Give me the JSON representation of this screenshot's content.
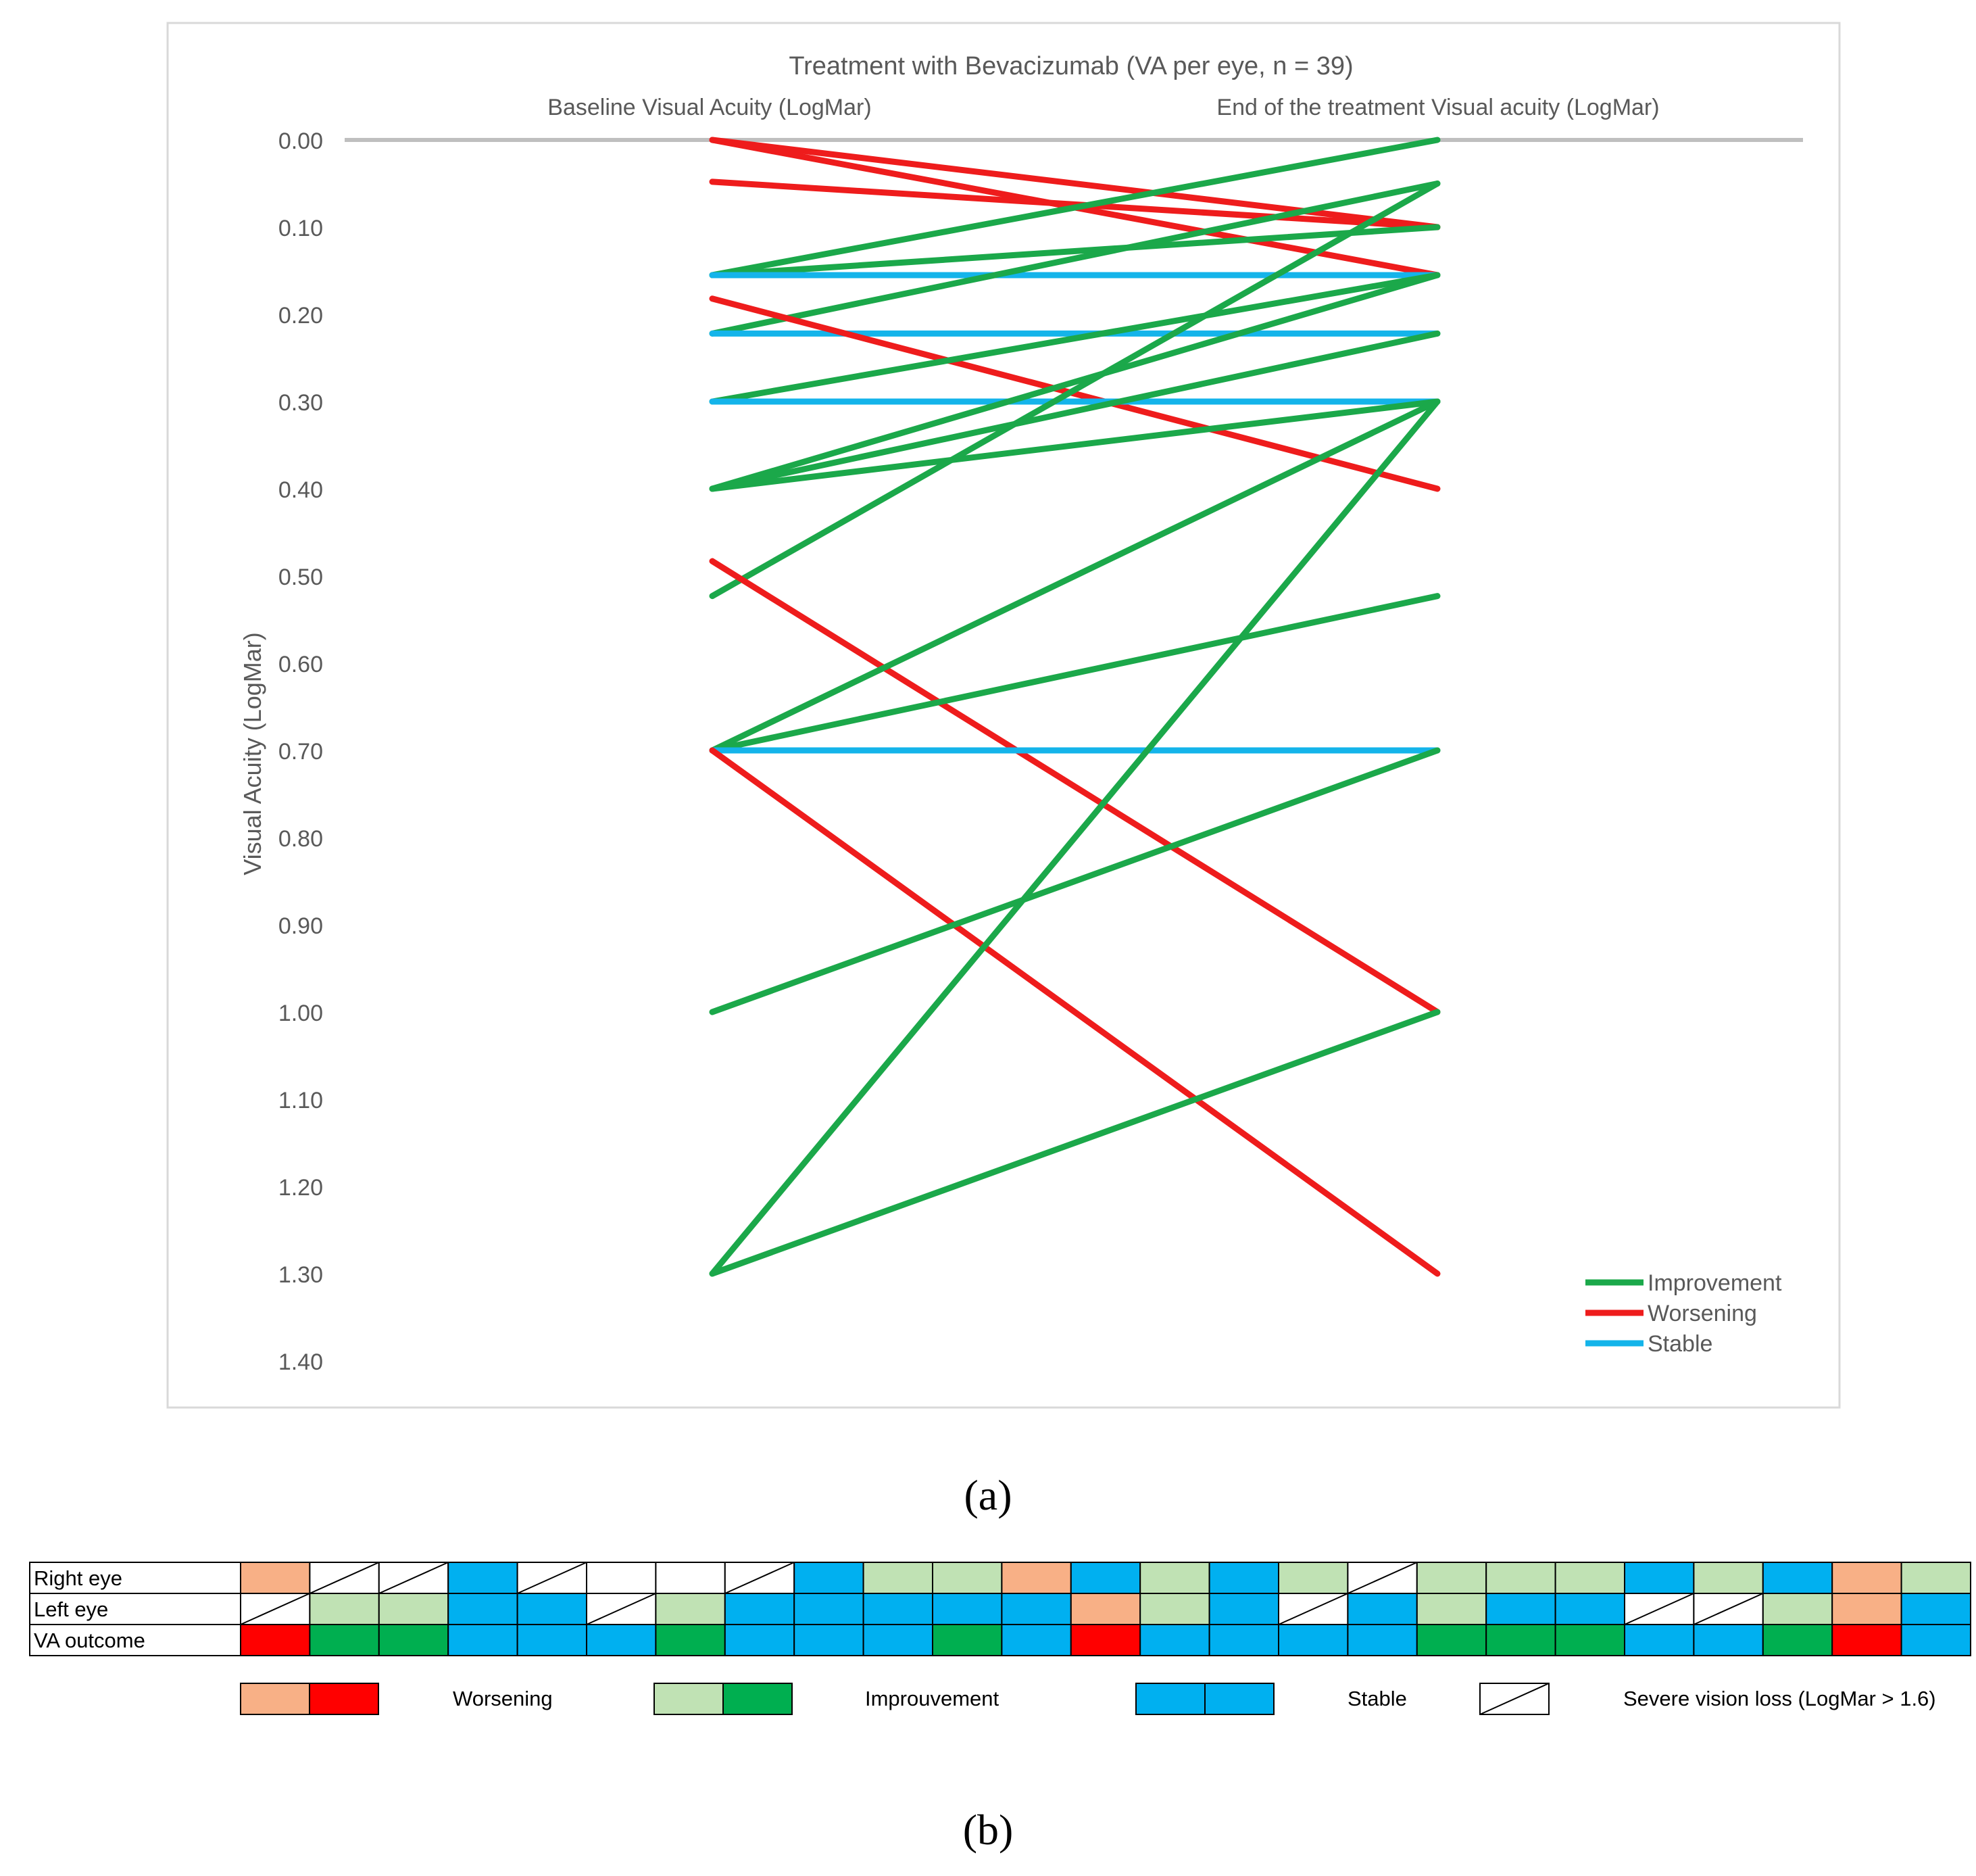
{
  "chart_data": [
    {
      "type": "slope",
      "title": "Treatment with Bevacizumab (VA per eye, n = 39)",
      "left_label": "Baseline Visual Acuity (LogMar)",
      "right_label": "End of the treatment Visual acuity (LogMar)",
      "ylabel": "Visual Acuity (LogMar)",
      "ylim": [
        0,
        1.4
      ],
      "y_inverted": true,
      "yticks": [
        "0.00",
        "0.10",
        "0.20",
        "0.30",
        "0.40",
        "0.50",
        "0.60",
        "0.70",
        "0.80",
        "0.90",
        "1.00",
        "1.10",
        "1.20",
        "1.30",
        "1.40"
      ],
      "colors": {
        "Improvement": "#1ba84a",
        "Worsening": "#ee1c1c",
        "Stable": "#14b4ea",
        "baseline_axis": "#bfbfbf"
      },
      "legend": [
        {
          "name": "Improvement",
          "color": "#1ba84a"
        },
        {
          "name": "Worsening",
          "color": "#ee1c1c"
        },
        {
          "name": "Stable",
          "color": "#14b4ea"
        }
      ],
      "lines": [
        {
          "from": 0.0,
          "to": 0.1,
          "outcome": "Worsening"
        },
        {
          "from": 0.0,
          "to": 0.155,
          "outcome": "Worsening"
        },
        {
          "from": 0.048,
          "to": 0.1,
          "outcome": "Worsening"
        },
        {
          "from": 0.155,
          "to": 0.0,
          "outcome": "Improvement"
        },
        {
          "from": 0.155,
          "to": 0.1,
          "outcome": "Improvement"
        },
        {
          "from": 0.155,
          "to": 0.155,
          "outcome": "Stable"
        },
        {
          "from": 0.222,
          "to": 0.05,
          "outcome": "Improvement"
        },
        {
          "from": 0.222,
          "to": 0.222,
          "outcome": "Stable"
        },
        {
          "from": 0.182,
          "to": 0.4,
          "outcome": "Worsening"
        },
        {
          "from": 0.3,
          "to": 0.155,
          "outcome": "Improvement"
        },
        {
          "from": 0.3,
          "to": 0.3,
          "outcome": "Stable"
        },
        {
          "from": 0.4,
          "to": 0.155,
          "outcome": "Improvement"
        },
        {
          "from": 0.4,
          "to": 0.222,
          "outcome": "Improvement"
        },
        {
          "from": 0.4,
          "to": 0.3,
          "outcome": "Improvement"
        },
        {
          "from": 0.523,
          "to": 0.05,
          "outcome": "Improvement"
        },
        {
          "from": 0.483,
          "to": 1.0,
          "outcome": "Worsening"
        },
        {
          "from": 0.7,
          "to": 0.3,
          "outcome": "Improvement"
        },
        {
          "from": 0.7,
          "to": 0.523,
          "outcome": "Improvement"
        },
        {
          "from": 0.7,
          "to": 0.7,
          "outcome": "Stable"
        },
        {
          "from": 0.7,
          "to": 1.3,
          "outcome": "Worsening"
        },
        {
          "from": 1.0,
          "to": 0.7,
          "outcome": "Improvement"
        },
        {
          "from": 1.3,
          "to": 0.3,
          "outcome": "Improvement"
        },
        {
          "from": 1.3,
          "to": 1.0,
          "outcome": "Improvement"
        }
      ]
    },
    {
      "type": "table",
      "row_labels": [
        "Right eye",
        "Left eye",
        "VA outcome"
      ],
      "rows": [
        [
          "worsening_eye",
          "severe",
          "severe",
          "stable",
          "severe",
          "blank",
          "blank",
          "severe",
          "stable",
          "improvement_eye",
          "improvement_eye",
          "worsening_eye",
          "stable",
          "improvement_eye",
          "stable",
          "improvement_eye",
          "severe",
          "improvement_eye",
          "improvement_eye",
          "improvement_eye",
          "stable",
          "improvement_eye",
          "stable",
          "worsening_eye",
          "improvement_eye"
        ],
        [
          "severe",
          "improvement_eye",
          "improvement_eye",
          "stable",
          "stable",
          "severe",
          "improvement_eye",
          "stable",
          "stable",
          "stable",
          "stable",
          "stable",
          "worsening_eye",
          "improvement_eye",
          "stable",
          "severe",
          "stable",
          "improvement_eye",
          "stable",
          "stable",
          "severe",
          "severe",
          "improvement_eye",
          "worsening_eye",
          "stable"
        ],
        [
          "worsening_outcome",
          "improvement_outcome",
          "improvement_outcome",
          "stable",
          "stable",
          "stable",
          "improvement_outcome",
          "stable",
          "stable",
          "stable",
          "improvement_outcome",
          "stable",
          "worsening_outcome",
          "stable",
          "stable",
          "stable",
          "stable",
          "improvement_outcome",
          "improvement_outcome",
          "improvement_outcome",
          "stable",
          "stable",
          "improvement_outcome",
          "worsening_outcome",
          "stable"
        ]
      ],
      "cell_colors": {
        "worsening_eye": "#f8b086",
        "worsening_outcome": "#ff0000",
        "improvement_eye": "#c0e2b4",
        "improvement_outcome": "#00af50",
        "stable": "#00b0f0",
        "severe": "#ffffff",
        "blank": "#ffffff"
      },
      "legend": [
        {
          "label": "Worsening",
          "swatches": [
            "worsening_eye",
            "worsening_outcome"
          ]
        },
        {
          "label": "Improuvement",
          "swatches": [
            "improvement_eye",
            "improvement_outcome"
          ]
        },
        {
          "label": "Stable",
          "swatches": [
            "stable",
            "stable"
          ]
        },
        {
          "label": "Severe vision loss (LogMar > 1.6)",
          "swatches": [
            "severe"
          ]
        }
      ]
    }
  ],
  "captions": {
    "a": "(a)",
    "b": "(b)"
  }
}
